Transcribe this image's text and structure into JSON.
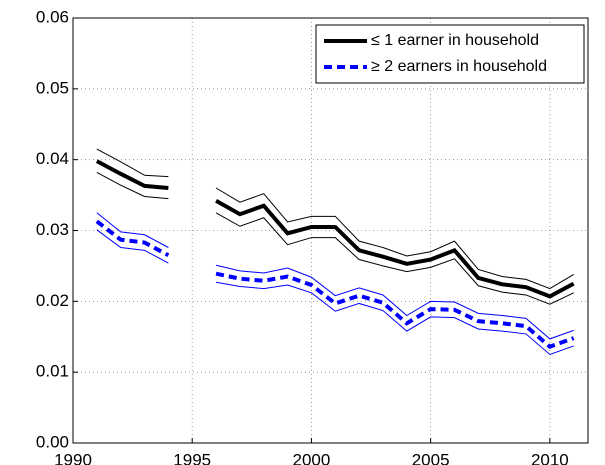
{
  "chart_data": {
    "type": "line",
    "x": [
      1991,
      1992,
      1993,
      1994,
      1995,
      1996,
      1997,
      1998,
      1999,
      2000,
      2001,
      2002,
      2003,
      2004,
      2005,
      2006,
      2007,
      2008,
      2009,
      2010,
      2011
    ],
    "series": [
      {
        "name": "≤ 1 earner in household",
        "color": "#000000",
        "line_style": "solid",
        "values": [
          0.0398,
          0.038,
          0.0363,
          0.036,
          null,
          0.0342,
          0.0323,
          0.0335,
          0.0296,
          0.0305,
          0.0305,
          0.0272,
          0.0263,
          0.0253,
          0.0259,
          0.0272,
          0.0233,
          0.0224,
          0.022,
          0.0207,
          0.0225
        ],
        "upper": [
          0.0415,
          0.0397,
          0.0378,
          0.0376,
          null,
          0.036,
          0.034,
          0.0352,
          0.0312,
          0.032,
          0.032,
          0.0285,
          0.0276,
          0.0264,
          0.027,
          0.0285,
          0.0245,
          0.0235,
          0.0231,
          0.0218,
          0.0238
        ],
        "lower": [
          0.0382,
          0.0364,
          0.0348,
          0.0345,
          null,
          0.0325,
          0.0306,
          0.0318,
          0.028,
          0.029,
          0.029,
          0.0259,
          0.025,
          0.0242,
          0.0248,
          0.026,
          0.0222,
          0.0213,
          0.0209,
          0.0196,
          0.0212
        ]
      },
      {
        "name": "≥ 2 earners in household",
        "color": "#0000ff",
        "line_style": "dashed",
        "values": [
          0.0313,
          0.0287,
          0.0283,
          0.0265,
          null,
          0.0239,
          0.0232,
          0.0229,
          0.0235,
          0.0223,
          0.0197,
          0.0208,
          0.0198,
          0.0169,
          0.0189,
          0.0188,
          0.0172,
          0.0169,
          0.0165,
          0.0136,
          0.0148
        ],
        "upper": [
          0.0325,
          0.0298,
          0.0294,
          0.0276,
          null,
          0.0251,
          0.0243,
          0.024,
          0.0247,
          0.0234,
          0.0208,
          0.0219,
          0.0209,
          0.018,
          0.02,
          0.0199,
          0.0183,
          0.018,
          0.0176,
          0.0147,
          0.0159
        ],
        "lower": [
          0.0301,
          0.0276,
          0.0272,
          0.0254,
          null,
          0.0227,
          0.0221,
          0.0218,
          0.0223,
          0.0212,
          0.0186,
          0.0197,
          0.0187,
          0.0158,
          0.0178,
          0.0177,
          0.0161,
          0.0158,
          0.0154,
          0.0125,
          0.0137
        ]
      }
    ],
    "xlim": [
      1990,
      2011.6
    ],
    "xticks": [
      1990,
      1995,
      2000,
      2005,
      2010
    ],
    "ylim": [
      0,
      0.06
    ],
    "yticks": [
      {
        "value": 0,
        "label": "0.00"
      },
      0.01,
      0.02,
      0.03,
      0.04,
      0.05,
      0.06
    ],
    "grid": true,
    "legend": "upper right"
  }
}
